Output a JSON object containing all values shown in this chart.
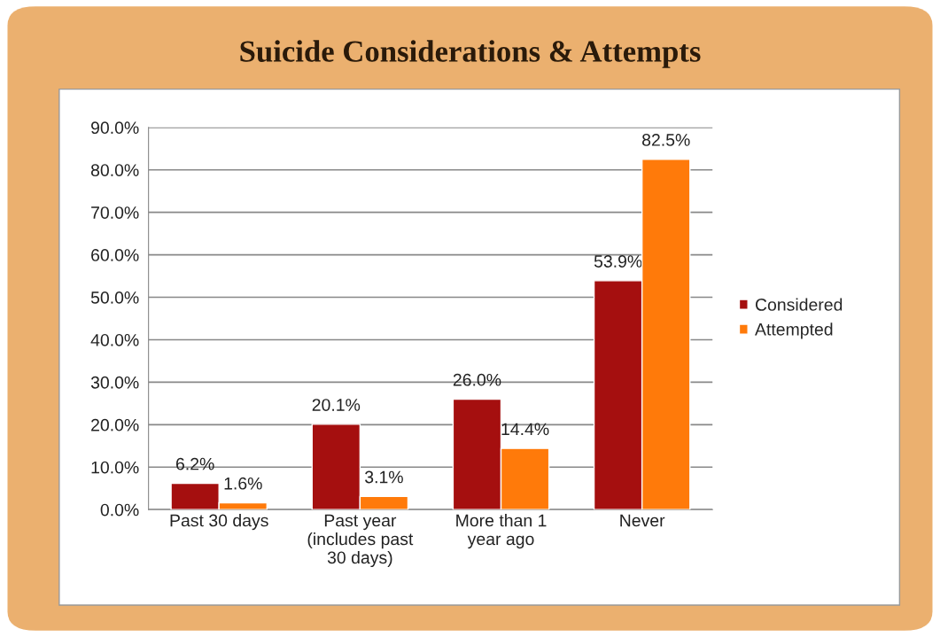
{
  "chart_data": {
    "type": "bar",
    "title": "Suicide Considerations & Attempts",
    "categories": [
      "Past 30 days",
      "Past year\n(includes past\n30 days)",
      "More than 1\nyear ago",
      "Never"
    ],
    "series": [
      {
        "name": "Considered",
        "color": "#a50f0f",
        "values": [
          6.2,
          20.1,
          26.0,
          53.9
        ],
        "value_labels": [
          "6.2%",
          "20.1%",
          "26.0%",
          "53.9%"
        ]
      },
      {
        "name": "Attempted",
        "color": "#ff7a0a",
        "values": [
          1.6,
          3.1,
          14.4,
          82.5
        ],
        "value_labels": [
          "1.6%",
          "3.1%",
          "14.4%",
          "82.5%"
        ]
      }
    ],
    "ylim": [
      0,
      90
    ],
    "yticks": [
      {
        "value": 0,
        "label": "0.0%"
      },
      {
        "value": 10,
        "label": "10.0%"
      },
      {
        "value": 20,
        "label": "20.0%"
      },
      {
        "value": 30,
        "label": "30.0%"
      },
      {
        "value": 40,
        "label": "40.0%"
      },
      {
        "value": 50,
        "label": "50.0%"
      },
      {
        "value": 60,
        "label": "60.0%"
      },
      {
        "value": 70,
        "label": "70.0%"
      },
      {
        "value": 80,
        "label": "80.0%"
      },
      {
        "value": 90,
        "label": "90.0%"
      }
    ],
    "grid": "y",
    "legend": "right"
  }
}
